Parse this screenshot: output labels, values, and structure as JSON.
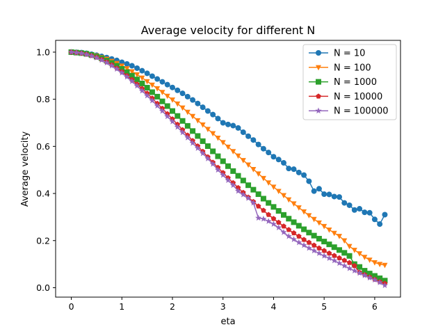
{
  "chart_data": {
    "type": "line",
    "title": "Average velocity for different N",
    "xlabel": "eta",
    "ylabel": "Average velocity",
    "xlim": [
      -0.31,
      6.51
    ],
    "ylim": [
      -0.04,
      1.05
    ],
    "x_ticks": [
      "0",
      "1",
      "2",
      "3",
      "4",
      "5",
      "6"
    ],
    "y_ticks": [
      "0.0",
      "0.2",
      "0.4",
      "0.6",
      "0.8",
      "1.0"
    ],
    "grid": false,
    "legend_position": "top-right",
    "x": [
      0,
      0.1,
      0.2,
      0.3,
      0.4,
      0.5,
      0.6,
      0.7,
      0.8,
      0.9,
      1.0,
      1.1,
      1.2,
      1.3,
      1.4,
      1.5,
      1.6,
      1.7,
      1.8,
      1.9,
      2.0,
      2.1,
      2.2,
      2.3,
      2.4,
      2.5,
      2.6,
      2.7,
      2.8,
      2.9,
      3.0,
      3.1,
      3.2,
      3.3,
      3.4,
      3.5,
      3.6,
      3.7,
      3.8,
      3.9,
      4.0,
      4.1,
      4.2,
      4.3,
      4.4,
      4.5,
      4.6,
      4.7,
      4.8,
      4.9,
      5.0,
      5.1,
      5.2,
      5.3,
      5.4,
      5.5,
      5.6,
      5.7,
      5.8,
      5.9,
      6.0,
      6.1,
      6.2
    ],
    "series": [
      {
        "name": "N = 10",
        "color": "#1f77b4",
        "marker": "circle",
        "values": [
          1.0,
          0.999,
          0.998,
          0.995,
          0.991,
          0.987,
          0.982,
          0.977,
          0.971,
          0.965,
          0.957,
          0.95,
          0.942,
          0.932,
          0.921,
          0.91,
          0.898,
          0.886,
          0.874,
          0.862,
          0.85,
          0.838,
          0.825,
          0.811,
          0.797,
          0.782,
          0.766,
          0.75,
          0.735,
          0.718,
          0.7,
          0.693,
          0.688,
          0.678,
          0.66,
          0.643,
          0.627,
          0.608,
          0.59,
          0.574,
          0.556,
          0.544,
          0.53,
          0.506,
          0.503,
          0.489,
          0.478,
          0.452,
          0.41,
          0.42,
          0.397,
          0.396,
          0.387,
          0.385,
          0.36,
          0.35,
          0.33,
          0.335,
          0.32,
          0.318,
          0.29,
          0.27,
          0.31
        ]
      },
      {
        "name": "N = 100",
        "color": "#ff7f0e",
        "marker": "triangle-down",
        "values": [
          1.0,
          0.999,
          0.997,
          0.994,
          0.99,
          0.985,
          0.978,
          0.971,
          0.962,
          0.953,
          0.942,
          0.931,
          0.918,
          0.905,
          0.891,
          0.876,
          0.861,
          0.846,
          0.83,
          0.814,
          0.798,
          0.781,
          0.764,
          0.746,
          0.728,
          0.71,
          0.692,
          0.673,
          0.655,
          0.636,
          0.617,
          0.598,
          0.579,
          0.56,
          0.541,
          0.522,
          0.503,
          0.484,
          0.465,
          0.446,
          0.428,
          0.41,
          0.392,
          0.374,
          0.357,
          0.34,
          0.323,
          0.307,
          0.291,
          0.276,
          0.261,
          0.246,
          0.232,
          0.219,
          0.2,
          0.176,
          0.16,
          0.145,
          0.13,
          0.118,
          0.107,
          0.1,
          0.096
        ]
      },
      {
        "name": "N = 1000",
        "color": "#2ca02c",
        "marker": "square",
        "values": [
          1.0,
          0.998,
          0.996,
          0.993,
          0.988,
          0.981,
          0.974,
          0.964,
          0.954,
          0.942,
          0.929,
          0.915,
          0.9,
          0.884,
          0.867,
          0.849,
          0.83,
          0.811,
          0.791,
          0.771,
          0.75,
          0.729,
          0.708,
          0.687,
          0.665,
          0.644,
          0.622,
          0.601,
          0.579,
          0.558,
          0.537,
          0.516,
          0.495,
          0.475,
          0.455,
          0.435,
          0.416,
          0.397,
          0.378,
          0.36,
          0.343,
          0.326,
          0.309,
          0.293,
          0.278,
          0.263,
          0.248,
          0.234,
          0.221,
          0.208,
          0.196,
          0.184,
          0.172,
          0.16,
          0.148,
          0.135,
          0.1,
          0.088,
          0.072,
          0.06,
          0.05,
          0.04,
          0.03
        ]
      },
      {
        "name": "N = 10000",
        "color": "#d62728",
        "marker": "pentagon",
        "values": [
          1.0,
          0.998,
          0.995,
          0.991,
          0.985,
          0.978,
          0.969,
          0.958,
          0.946,
          0.932,
          0.917,
          0.9,
          0.883,
          0.864,
          0.845,
          0.825,
          0.804,
          0.782,
          0.761,
          0.738,
          0.716,
          0.693,
          0.67,
          0.647,
          0.624,
          0.601,
          0.578,
          0.555,
          0.532,
          0.51,
          0.488,
          0.466,
          0.445,
          0.424,
          0.404,
          0.384,
          0.365,
          0.346,
          0.328,
          0.31,
          0.293,
          0.277,
          0.261,
          0.246,
          0.232,
          0.218,
          0.204,
          0.192,
          0.18,
          0.168,
          0.157,
          0.146,
          0.136,
          0.126,
          0.116,
          0.106,
          0.093,
          0.065,
          0.055,
          0.045,
          0.035,
          0.025,
          0.018
        ]
      },
      {
        "name": "N = 100000",
        "color": "#9467bd",
        "marker": "star",
        "values": [
          1.0,
          0.998,
          0.995,
          0.99,
          0.984,
          0.976,
          0.966,
          0.955,
          0.942,
          0.928,
          0.912,
          0.895,
          0.876,
          0.857,
          0.836,
          0.815,
          0.794,
          0.772,
          0.75,
          0.727,
          0.705,
          0.682,
          0.659,
          0.637,
          0.614,
          0.592,
          0.57,
          0.548,
          0.525,
          0.5,
          0.478,
          0.456,
          0.435,
          0.41,
          0.395,
          0.38,
          0.36,
          0.296,
          0.292,
          0.282,
          0.27,
          0.255,
          0.235,
          0.218,
          0.205,
          0.192,
          0.18,
          0.168,
          0.157,
          0.146,
          0.135,
          0.125,
          0.115,
          0.104,
          0.093,
          0.082,
          0.072,
          0.062,
          0.052,
          0.042,
          0.033,
          0.022,
          0.01
        ]
      }
    ]
  }
}
